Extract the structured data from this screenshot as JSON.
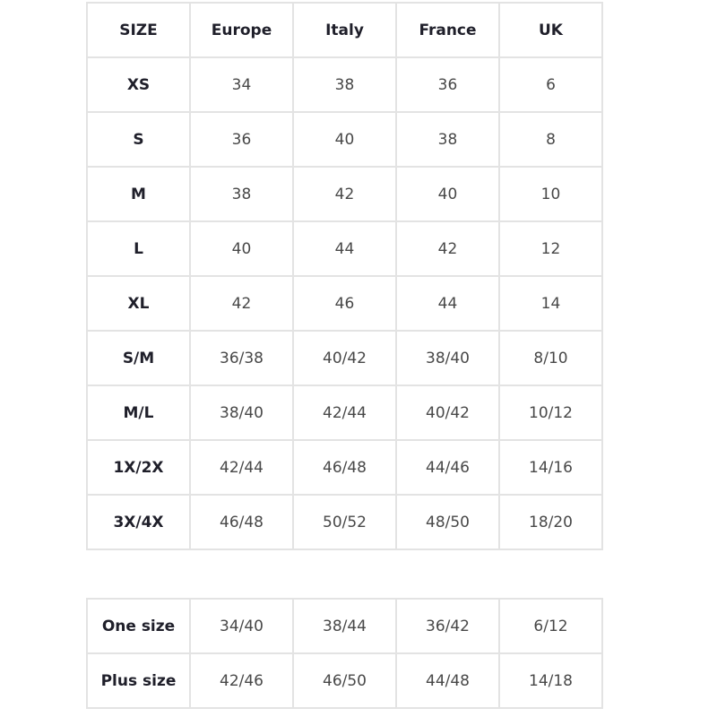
{
  "size_table": {
    "headers": [
      "SIZE",
      "Europe",
      "Italy",
      "France",
      "UK"
    ],
    "rows": [
      [
        "XS",
        "34",
        "38",
        "36",
        "6"
      ],
      [
        "S",
        "36",
        "40",
        "38",
        "8"
      ],
      [
        "M",
        "38",
        "42",
        "40",
        "10"
      ],
      [
        "L",
        "40",
        "44",
        "42",
        "12"
      ],
      [
        "XL",
        "42",
        "46",
        "44",
        "14"
      ],
      [
        "S/M",
        "36/38",
        "40/42",
        "38/40",
        "8/10"
      ],
      [
        "M/L",
        "38/40",
        "42/44",
        "40/42",
        "10/12"
      ],
      [
        "1X/2X",
        "42/44",
        "46/48",
        "44/46",
        "14/16"
      ],
      [
        "3X/4X",
        "46/48",
        "50/52",
        "48/50",
        "18/20"
      ]
    ]
  },
  "special_sizes_table": {
    "rows": [
      [
        "One size",
        "34/40",
        "38/44",
        "36/42",
        "6/12"
      ],
      [
        "Plus size",
        "42/46",
        "46/50",
        "44/48",
        "14/18"
      ]
    ]
  }
}
